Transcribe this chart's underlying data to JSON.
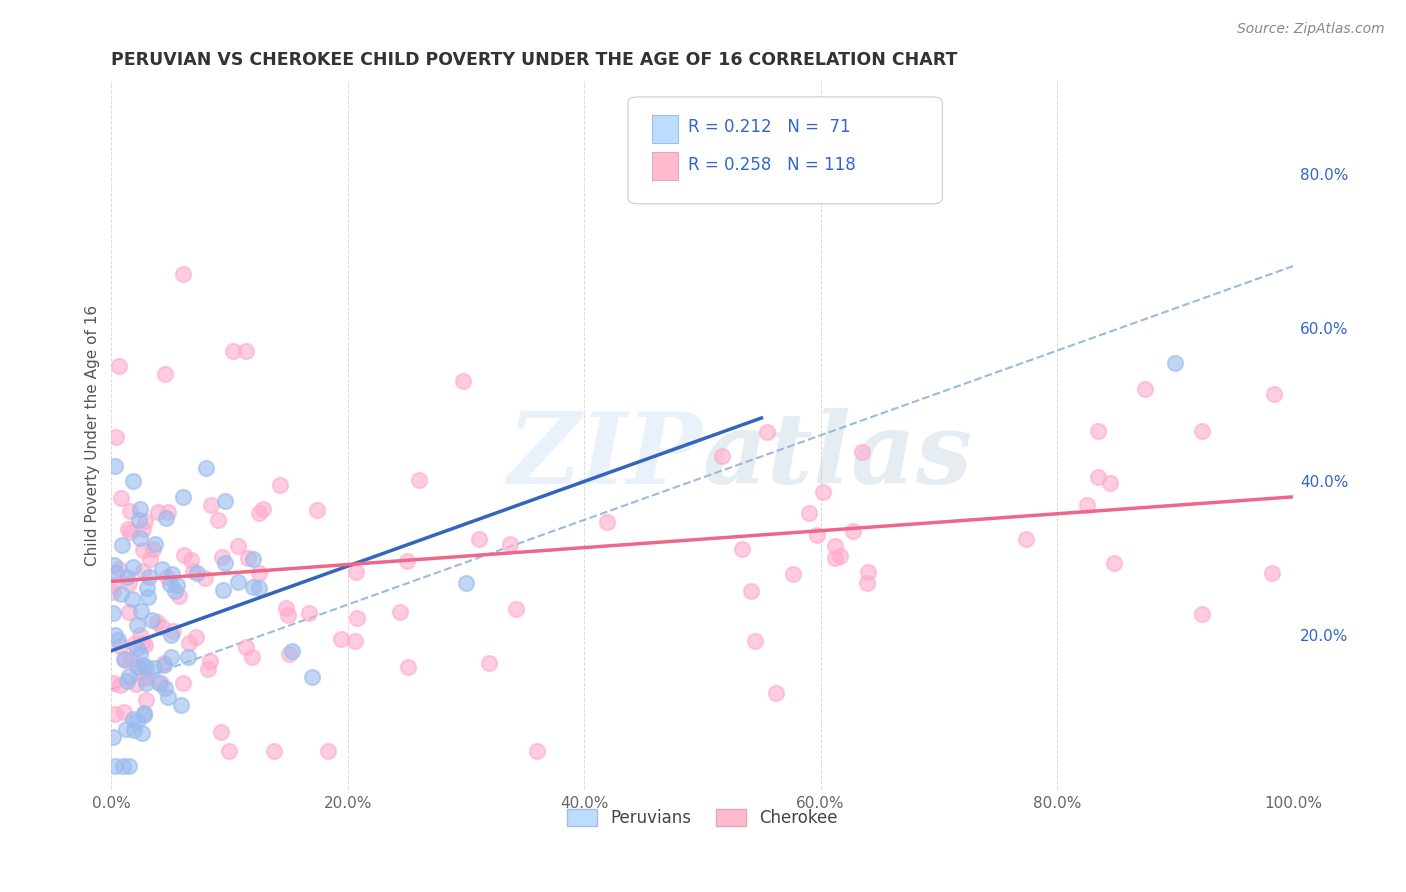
{
  "title": "PERUVIAN VS CHEROKEE CHILD POVERTY UNDER THE AGE OF 16 CORRELATION CHART",
  "source": "Source: ZipAtlas.com",
  "ylabel": "Child Poverty Under the Age of 16",
  "watermark": "ZIPAtlas",
  "blue_R": 0.212,
  "blue_N": 71,
  "pink_R": 0.258,
  "pink_N": 118,
  "blue_marker_color": "#99BBEE",
  "pink_marker_color": "#FFAACC",
  "blue_line_color": "#3366BB",
  "pink_line_color": "#EE6688",
  "dashed_line_color": "#99BBDD",
  "background_color": "#FFFFFF",
  "grid_color": "#CCCCCC",
  "title_color": "#333333",
  "legend_text_color": "#3366CC",
  "right_axis_color": "#3366CC",
  "xlim": [
    0.0,
    1.0
  ],
  "ylim": [
    0.0,
    0.92
  ],
  "x_ticks": [
    0.0,
    0.2,
    0.4,
    0.6,
    0.8,
    1.0
  ],
  "y_ticks_right": [
    0.2,
    0.4,
    0.6,
    0.8
  ],
  "legend_blue_fill": "#BBDDFF",
  "legend_pink_fill": "#FFBBCC",
  "bottom_legend_peruvians": "Peruvians",
  "bottom_legend_cherokee": "Cherokee"
}
